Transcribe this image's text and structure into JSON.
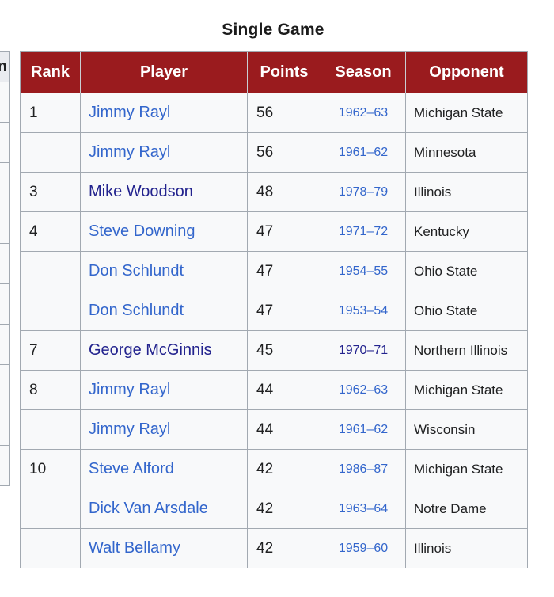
{
  "title": "Single Game",
  "colors": {
    "header_bg": "#9a1b1e",
    "header_text": "#ffffff",
    "cell_bg": "#f8f9fa",
    "border": "#a2a9b1",
    "link": "#3366cc",
    "visited_link": "#23238e",
    "text": "#202122"
  },
  "adjacent_table_fragment": {
    "visible_header_text": "n",
    "visible_rows": 10
  },
  "table": {
    "columns": [
      "Rank",
      "Player",
      "Points",
      "Season",
      "Opponent"
    ],
    "rows": [
      {
        "rank": "1",
        "player": "Jimmy Rayl",
        "points": "56",
        "season": "1962–63",
        "opponent": "Michigan State",
        "player_visited": false,
        "season_visited": false
      },
      {
        "rank": "",
        "player": "Jimmy Rayl",
        "points": "56",
        "season": "1961–62",
        "opponent": "Minnesota",
        "player_visited": false,
        "season_visited": false
      },
      {
        "rank": "3",
        "player": "Mike Woodson",
        "points": "48",
        "season": "1978–79",
        "opponent": "Illinois",
        "player_visited": true,
        "season_visited": false
      },
      {
        "rank": "4",
        "player": "Steve Downing",
        "points": "47",
        "season": "1971–72",
        "opponent": "Kentucky",
        "player_visited": false,
        "season_visited": false
      },
      {
        "rank": "",
        "player": "Don Schlundt",
        "points": "47",
        "season": "1954–55",
        "opponent": "Ohio State",
        "player_visited": false,
        "season_visited": false
      },
      {
        "rank": "",
        "player": "Don Schlundt",
        "points": "47",
        "season": "1953–54",
        "opponent": "Ohio State",
        "player_visited": false,
        "season_visited": false
      },
      {
        "rank": "7",
        "player": "George McGinnis",
        "points": "45",
        "season": "1970–71",
        "opponent": "Northern Illinois",
        "player_visited": true,
        "season_visited": true
      },
      {
        "rank": "8",
        "player": "Jimmy Rayl",
        "points": "44",
        "season": "1962–63",
        "opponent": "Michigan State",
        "player_visited": false,
        "season_visited": false
      },
      {
        "rank": "",
        "player": "Jimmy Rayl",
        "points": "44",
        "season": "1961–62",
        "opponent": "Wisconsin",
        "player_visited": false,
        "season_visited": false
      },
      {
        "rank": "10",
        "player": "Steve Alford",
        "points": "42",
        "season": "1986–87",
        "opponent": "Michigan State",
        "player_visited": false,
        "season_visited": false
      },
      {
        "rank": "",
        "player": "Dick Van Arsdale",
        "points": "42",
        "season": "1963–64",
        "opponent": "Notre Dame",
        "player_visited": false,
        "season_visited": false
      },
      {
        "rank": "",
        "player": "Walt Bellamy",
        "points": "42",
        "season": "1959–60",
        "opponent": "Illinois",
        "player_visited": false,
        "season_visited": false
      }
    ]
  }
}
